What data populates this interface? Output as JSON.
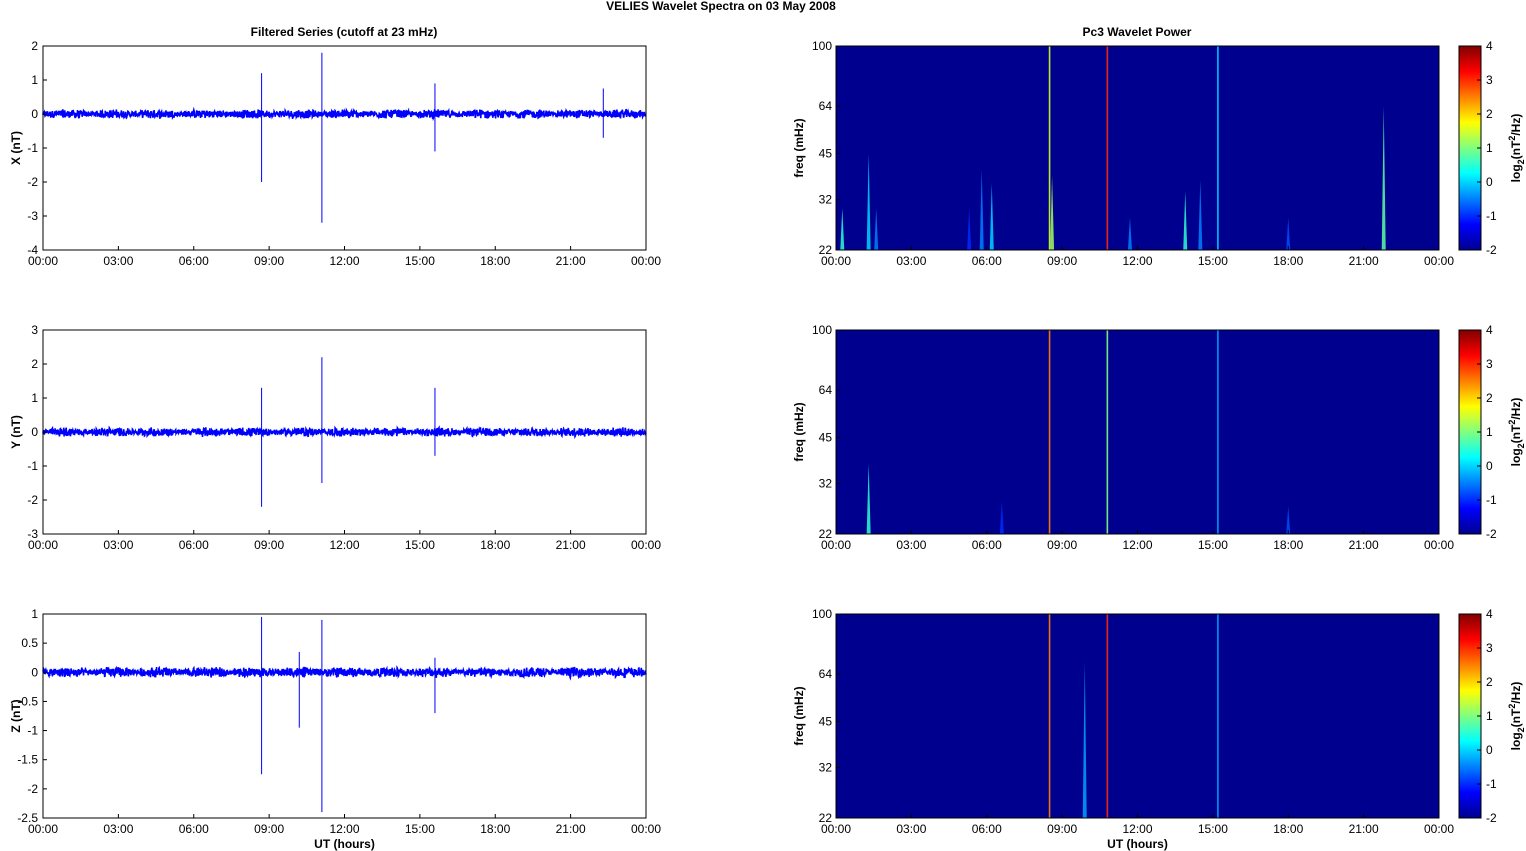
{
  "figure": {
    "title": "VELIES Wavelet Spectra on 03 May      2008",
    "left_title": "Filtered Series (cutoff at 23 mHz)",
    "right_title": "Pc3 Wavelet Power",
    "xlabel": "UT (hours)",
    "colorbar_label": "log2(nT2/Hz)",
    "colorbar_ticks": [
      "4",
      "3",
      "2",
      "1",
      "0",
      "-1",
      "-2"
    ],
    "colors": {
      "trace": "#0000ff",
      "spectrum_bg": "#00008f"
    }
  },
  "chart_data": [
    {
      "type": "line",
      "ylabel": "X (nT)",
      "ylim": [
        -4,
        2
      ],
      "yticks": [
        "2",
        "1",
        "0",
        "-1",
        "-2",
        "-3",
        "-4"
      ],
      "xticks": [
        "00:00",
        "03:00",
        "06:00",
        "09:00",
        "12:00",
        "15:00",
        "18:00",
        "21:00",
        "00:00"
      ],
      "xlim_hours": [
        0,
        24
      ],
      "baseline_noise_nT": 0.12,
      "spikes": [
        {
          "t": 8.7,
          "max": 1.2,
          "min": -2.0
        },
        {
          "t": 11.1,
          "max": 1.8,
          "min": -3.2
        },
        {
          "t": 15.6,
          "max": 0.9,
          "min": -1.1
        },
        {
          "t": 22.3,
          "max": 0.75,
          "min": -0.7
        }
      ]
    },
    {
      "type": "line",
      "ylabel": "Y (nT)",
      "ylim": [
        -3,
        3
      ],
      "yticks": [
        "3",
        "2",
        "1",
        "0",
        "-1",
        "-2",
        "-3"
      ],
      "xticks": [
        "00:00",
        "03:00",
        "06:00",
        "09:00",
        "12:00",
        "15:00",
        "18:00",
        "21:00",
        "00:00"
      ],
      "xlim_hours": [
        0,
        24
      ],
      "baseline_noise_nT": 0.12,
      "spikes": [
        {
          "t": 8.7,
          "max": 1.3,
          "min": -2.2
        },
        {
          "t": 11.1,
          "max": 2.2,
          "min": -1.5
        },
        {
          "t": 15.6,
          "max": 1.3,
          "min": -0.7
        }
      ]
    },
    {
      "type": "line",
      "ylabel": "Z (nT)",
      "ylim": [
        -2.5,
        1
      ],
      "yticks": [
        "1",
        "0.5",
        "0",
        "-0.5",
        "-1",
        "-1.5",
        "-2",
        "-2.5"
      ],
      "xticks": [
        "00:00",
        "03:00",
        "06:00",
        "09:00",
        "12:00",
        "15:00",
        "18:00",
        "21:00",
        "00:00"
      ],
      "xlim_hours": [
        0,
        24
      ],
      "baseline_noise_nT": 0.08,
      "spikes": [
        {
          "t": 8.7,
          "max": 0.95,
          "min": -1.75
        },
        {
          "t": 10.2,
          "max": 0.35,
          "min": -0.95
        },
        {
          "t": 11.1,
          "max": 0.9,
          "min": -2.4
        },
        {
          "t": 15.6,
          "max": 0.25,
          "min": -0.7
        }
      ]
    },
    {
      "type": "heatmap",
      "ylabel": "freq (mHz)",
      "yticks": [
        "100",
        "64",
        "45",
        "32",
        "22"
      ],
      "xticks": [
        "00:00",
        "03:00",
        "06:00",
        "09:00",
        "12:00",
        "15:00",
        "18:00",
        "21:00",
        "00:00"
      ],
      "clim": [
        -2,
        4
      ],
      "streaks": [
        {
          "t": 0.25,
          "top_mhz": 30,
          "level": 0.5
        },
        {
          "t": 1.3,
          "top_mhz": 45,
          "level": 0.0
        },
        {
          "t": 1.6,
          "top_mhz": 30,
          "level": -0.5
        },
        {
          "t": 5.3,
          "top_mhz": 30,
          "level": -1.0
        },
        {
          "t": 5.8,
          "top_mhz": 40,
          "level": -0.5
        },
        {
          "t": 6.2,
          "top_mhz": 36,
          "level": 0.0
        },
        {
          "t": 8.5,
          "top_mhz": 100,
          "level": 1.5
        },
        {
          "t": 8.6,
          "top_mhz": 38,
          "level": 1.2
        },
        {
          "t": 10.8,
          "top_mhz": 100,
          "level": 3.0
        },
        {
          "t": 11.7,
          "top_mhz": 28,
          "level": -0.5
        },
        {
          "t": 13.9,
          "top_mhz": 34,
          "level": 0.5
        },
        {
          "t": 14.5,
          "top_mhz": 37,
          "level": -0.5
        },
        {
          "t": 15.2,
          "top_mhz": 100,
          "level": 0.0
        },
        {
          "t": 18.0,
          "top_mhz": 28,
          "level": -0.8
        },
        {
          "t": 21.8,
          "top_mhz": 64,
          "level": 0.8
        }
      ]
    },
    {
      "type": "heatmap",
      "ylabel": "freq (mHz)",
      "yticks": [
        "100",
        "64",
        "45",
        "32",
        "22"
      ],
      "xticks": [
        "00:00",
        "03:00",
        "06:00",
        "09:00",
        "12:00",
        "15:00",
        "18:00",
        "21:00",
        "00:00"
      ],
      "clim": [
        -2,
        4
      ],
      "streaks": [
        {
          "t": 1.3,
          "top_mhz": 37,
          "level": 0.5
        },
        {
          "t": 6.6,
          "top_mhz": 28,
          "level": -1.0
        },
        {
          "t": 8.5,
          "top_mhz": 100,
          "level": 2.5
        },
        {
          "t": 10.8,
          "top_mhz": 100,
          "level": 1.0
        },
        {
          "t": 15.2,
          "top_mhz": 100,
          "level": -0.3
        },
        {
          "t": 18.0,
          "top_mhz": 27,
          "level": -0.8
        }
      ]
    },
    {
      "type": "heatmap",
      "ylabel": "freq (mHz)",
      "yticks": [
        "100",
        "64",
        "45",
        "32",
        "22"
      ],
      "xticks": [
        "00:00",
        "03:00",
        "06:00",
        "09:00",
        "12:00",
        "15:00",
        "18:00",
        "21:00",
        "00:00"
      ],
      "clim": [
        -2,
        4
      ],
      "streaks": [
        {
          "t": 8.5,
          "top_mhz": 100,
          "level": 2.5
        },
        {
          "t": 9.9,
          "top_mhz": 70,
          "level": -0.3
        },
        {
          "t": 10.8,
          "top_mhz": 100,
          "level": 3.0
        },
        {
          "t": 15.2,
          "top_mhz": 100,
          "level": -0.3
        }
      ]
    }
  ]
}
